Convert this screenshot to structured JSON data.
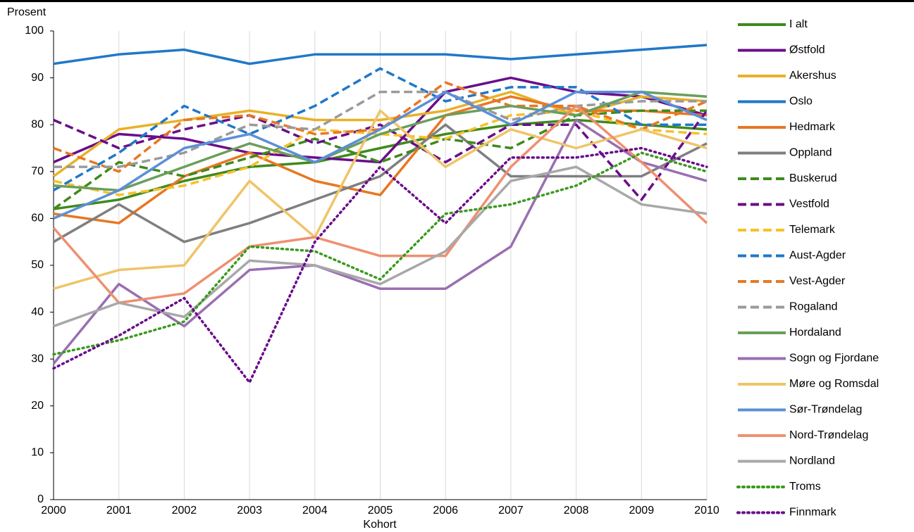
{
  "chart_data": {
    "type": "line",
    "ylabel": "Prosent",
    "xlabel": "Kohort",
    "x": [
      2000,
      2001,
      2002,
      2003,
      2004,
      2005,
      2006,
      2007,
      2008,
      2009,
      2010
    ],
    "xlim": [
      2000,
      2010
    ],
    "xticks": [
      2000,
      2001,
      2002,
      2003,
      2004,
      2005,
      2006,
      2007,
      2008,
      2009,
      2010
    ],
    "ylim": [
      0,
      100
    ],
    "yticks": [
      0,
      10,
      20,
      30,
      40,
      50,
      60,
      70,
      80,
      90,
      100
    ],
    "grid": "x",
    "legend": "right",
    "series": [
      {
        "name": "I alt",
        "color": "#3f8a1c",
        "style": "solid",
        "values": [
          62,
          64,
          68,
          71,
          72,
          75,
          78,
          80,
          81,
          80,
          79
        ]
      },
      {
        "name": "Østfold",
        "color": "#6a0d8a",
        "style": "solid",
        "values": [
          72,
          78,
          77,
          74,
          73,
          72,
          87,
          90,
          87,
          86,
          82
        ]
      },
      {
        "name": "Akershus",
        "color": "#e8b128",
        "style": "solid",
        "values": [
          69,
          79,
          81,
          83,
          81,
          81,
          83,
          87,
          82,
          86,
          85
        ]
      },
      {
        "name": "Oslo",
        "color": "#1f78c8",
        "style": "solid",
        "values": [
          93,
          95,
          96,
          93,
          95,
          95,
          95,
          94,
          95,
          96,
          97
        ]
      },
      {
        "name": "Hedmark",
        "color": "#e87722",
        "style": "solid",
        "values": [
          61,
          59,
          69,
          74,
          68,
          65,
          82,
          86,
          83,
          83,
          82
        ]
      },
      {
        "name": "Oppland",
        "color": "#7f7f7f",
        "style": "solid",
        "values": [
          55,
          63,
          55,
          59,
          64,
          69,
          80,
          69,
          69,
          69,
          76
        ]
      },
      {
        "name": "Buskerud",
        "color": "#3f8a1c",
        "style": "dashed",
        "values": [
          62,
          72,
          69,
          73,
          77,
          72,
          77,
          75,
          82,
          83,
          83
        ]
      },
      {
        "name": "Vestfold",
        "color": "#6a0d8a",
        "style": "dashed",
        "values": [
          81,
          75,
          79,
          82,
          76,
          80,
          72,
          80,
          80,
          64,
          83
        ]
      },
      {
        "name": "Telemark",
        "color": "#f5c12a",
        "style": "dashed",
        "values": [
          68,
          65,
          67,
          71,
          79,
          78,
          77,
          82,
          83,
          79,
          78
        ]
      },
      {
        "name": "Aust-Agder",
        "color": "#1f78c8",
        "style": "dashed",
        "values": [
          66,
          74,
          84,
          78,
          84,
          92,
          85,
          88,
          88,
          80,
          80
        ]
      },
      {
        "name": "Vest-Agder",
        "color": "#e87722",
        "style": "dashed",
        "values": [
          75,
          70,
          81,
          82,
          78,
          79,
          89,
          84,
          84,
          79,
          85
        ]
      },
      {
        "name": "Rogaland",
        "color": "#9a9a9a",
        "style": "dashed",
        "values": [
          71,
          71,
          74,
          80,
          79,
          87,
          87,
          81,
          84,
          85,
          85
        ]
      },
      {
        "name": "Hordaland",
        "color": "#6b9e5a",
        "style": "solid",
        "values": [
          67,
          66,
          71,
          76,
          72,
          78,
          82,
          84,
          82,
          87,
          86
        ]
      },
      {
        "name": "Sogn og Fjordane",
        "color": "#9a6fb0",
        "style": "solid",
        "values": [
          29,
          46,
          37,
          49,
          50,
          45,
          45,
          54,
          81,
          72,
          68
        ]
      },
      {
        "name": "Møre og Romsdal",
        "color": "#f0c468",
        "style": "solid",
        "values": [
          45,
          49,
          50,
          68,
          56,
          83,
          71,
          79,
          75,
          79,
          75
        ]
      },
      {
        "name": "Sør-Trøndelag",
        "color": "#5b8fd8",
        "style": "solid",
        "values": [
          60,
          66,
          75,
          78,
          72,
          79,
          87,
          80,
          87,
          87,
          81
        ]
      },
      {
        "name": "Nord-Trøndelag",
        "color": "#ee9070",
        "style": "solid",
        "values": [
          58,
          42,
          44,
          54,
          56,
          52,
          52,
          71,
          84,
          72,
          59
        ]
      },
      {
        "name": "Nordland",
        "color": "#a8a8a8",
        "style": "solid",
        "values": [
          37,
          42,
          39,
          51,
          50,
          46,
          53,
          68,
          71,
          63,
          61
        ]
      },
      {
        "name": "Troms",
        "color": "#3a9a1e",
        "style": "dotted",
        "values": [
          31,
          34,
          38,
          54,
          53,
          47,
          61,
          63,
          67,
          74,
          70
        ]
      },
      {
        "name": "Finnmark",
        "color": "#6a0d8a",
        "style": "dotted",
        "values": [
          28,
          35,
          43,
          25,
          55,
          71,
          59,
          73,
          73,
          75,
          71
        ]
      }
    ]
  }
}
